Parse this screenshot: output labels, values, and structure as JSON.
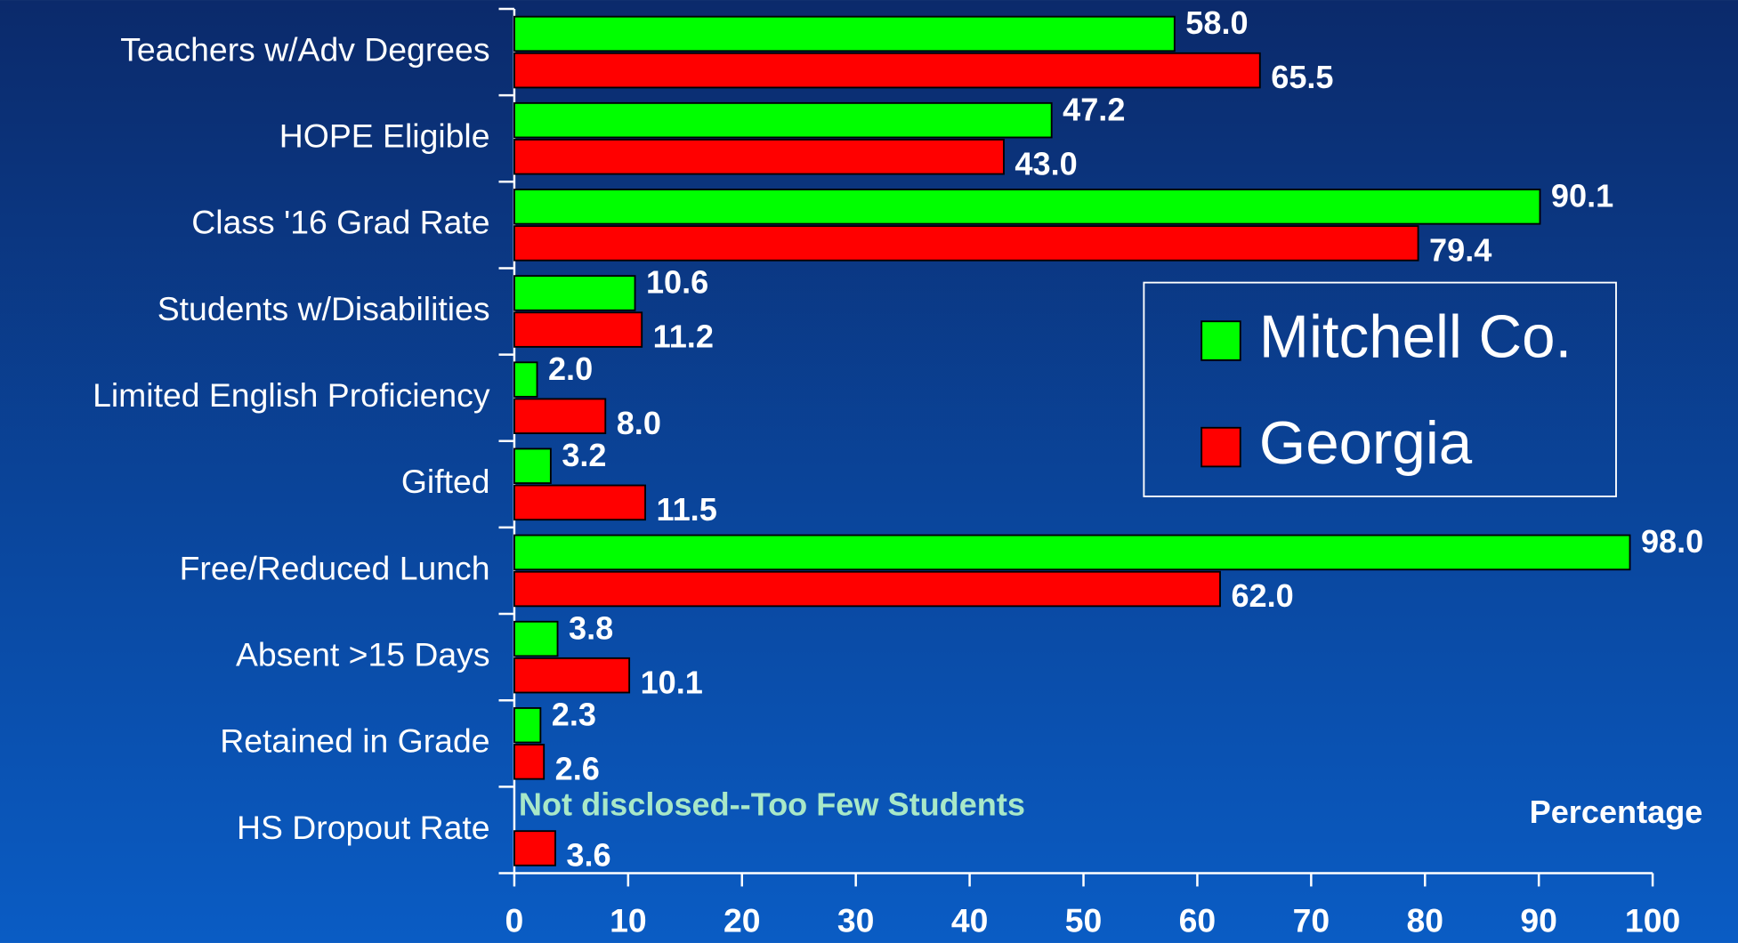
{
  "chart_data": {
    "type": "bar",
    "orientation": "horizontal",
    "categories": [
      "Teachers w/Adv Degrees",
      "HOPE Eligible",
      "Class '16 Grad Rate",
      "Students w/Disabilities",
      "Limited English Proficiency",
      "Gifted",
      "Free/Reduced Lunch",
      "Absent >15 Days",
      "Retained in Grade",
      "HS Dropout Rate"
    ],
    "series": [
      {
        "name": "Mitchell Co.",
        "color": "#00ff00",
        "values": [
          58.0,
          47.2,
          90.1,
          10.6,
          2.0,
          3.2,
          98.0,
          3.8,
          2.3,
          null
        ],
        "value_labels": [
          "58.0",
          "47.2",
          "90.1",
          "10.6",
          "2.0",
          "3.2",
          "98.0",
          "3.8",
          "2.3",
          null
        ]
      },
      {
        "name": "Georgia",
        "color": "#ff0000",
        "values": [
          65.5,
          43.0,
          79.4,
          11.2,
          8.0,
          11.5,
          62.0,
          10.1,
          2.6,
          3.6
        ],
        "value_labels": [
          "65.5",
          "43.0",
          "79.4",
          "11.2",
          "8.0",
          "11.5",
          "62.0",
          "10.1",
          "2.6",
          "3.6"
        ]
      }
    ],
    "xlabel": "Percentage",
    "xlim": [
      0,
      100
    ],
    "xticks": [
      0,
      10,
      20,
      30,
      40,
      50,
      60,
      70,
      80,
      90,
      100
    ],
    "annotations": [
      "Not disclosed--Too Few Students"
    ],
    "legend": "upper right"
  }
}
